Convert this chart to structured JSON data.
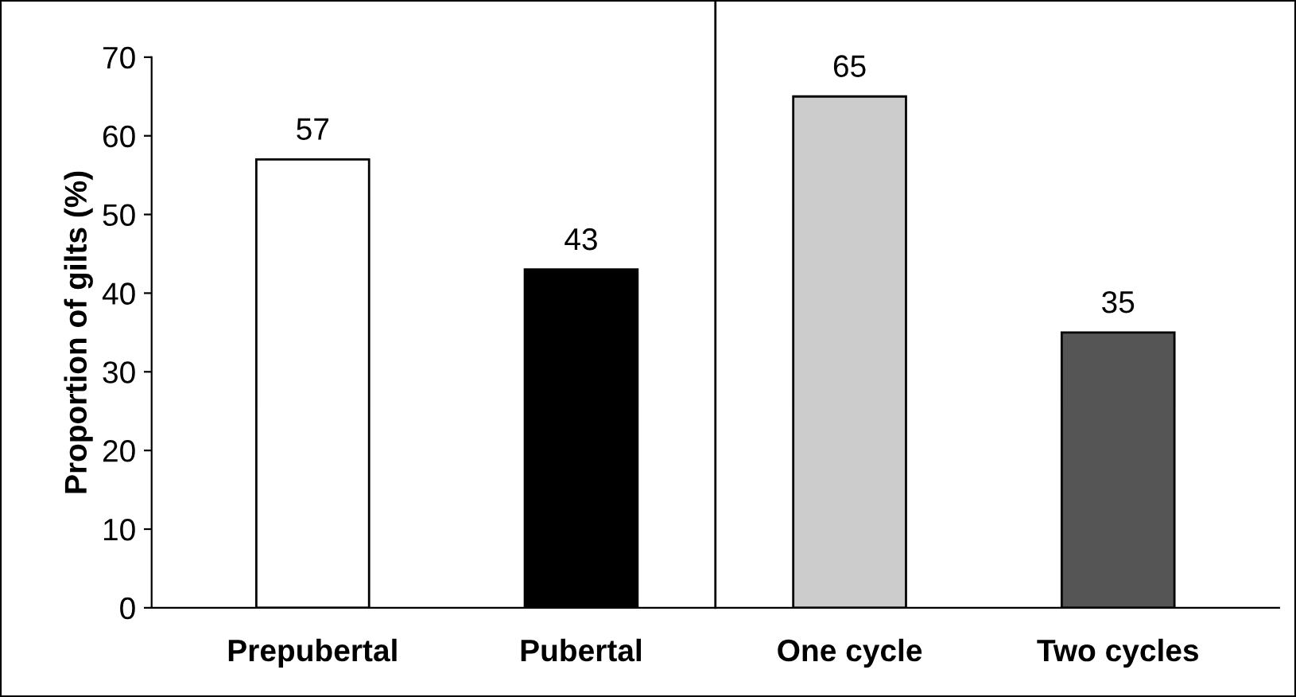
{
  "chart_data": {
    "type": "bar",
    "ylabel": "Proportion of gilts (%)",
    "categories": [
      "Prepubertal",
      "Pubertal",
      "One cycle",
      "Two cycles"
    ],
    "values": [
      57,
      43,
      65,
      35
    ],
    "colors": [
      "#ffffff",
      "#000000",
      "#cccccc",
      "#555555"
    ],
    "ylim": [
      0,
      70
    ],
    "yticks": [
      0,
      10,
      20,
      30,
      40,
      50,
      60,
      70
    ],
    "data_labels": true,
    "grid": false,
    "legend": false
  }
}
